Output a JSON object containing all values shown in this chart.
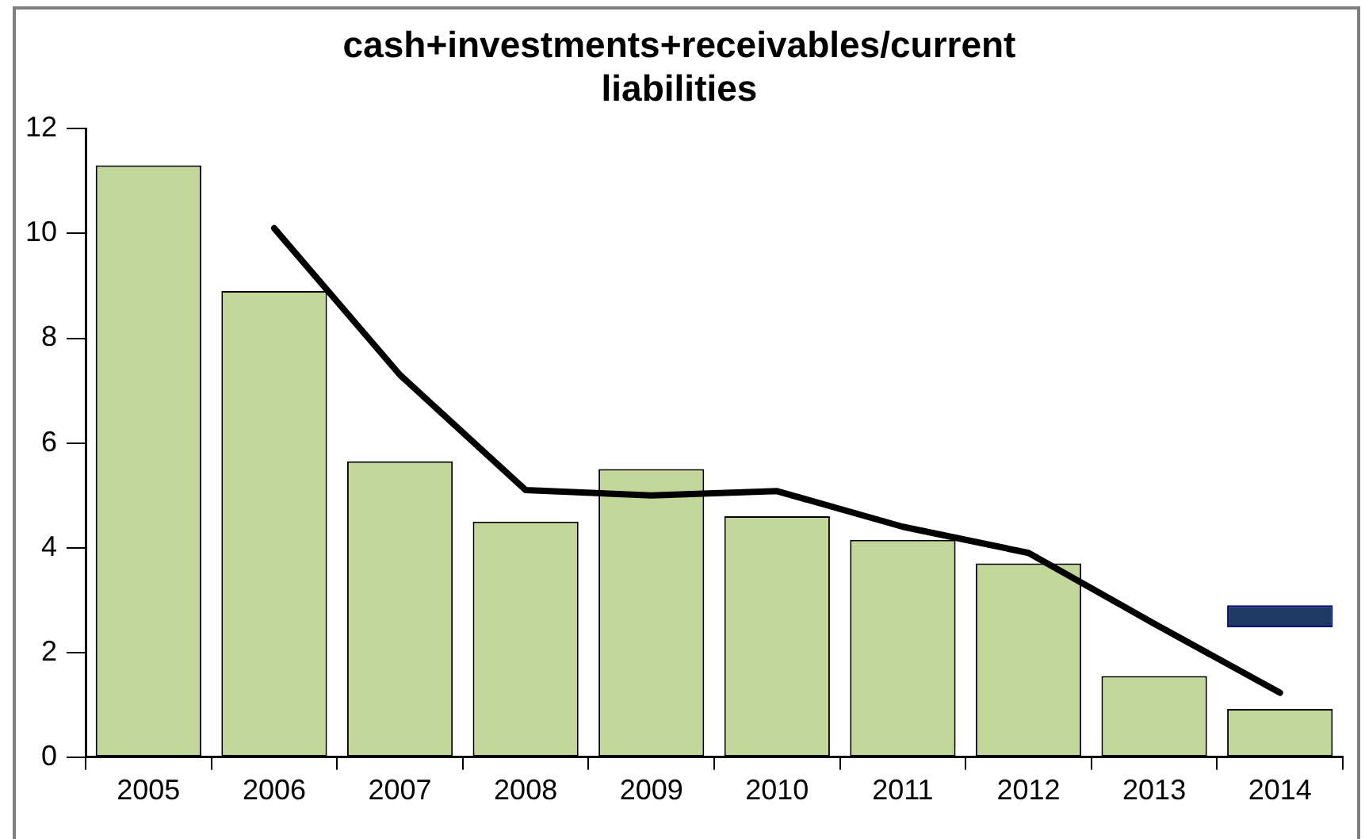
{
  "chart_data": {
    "type": "bar",
    "title": [
      "cash+investments+receivables/current",
      "liabilities"
    ],
    "categories": [
      "2005",
      "2006",
      "2007",
      "2008",
      "2009",
      "2010",
      "2011",
      "2012",
      "2013",
      "2014"
    ],
    "series": [
      {
        "color": "#c4d79b",
        "values": [
          11.3,
          8.9,
          5.65,
          4.5,
          5.5,
          4.6,
          4.15,
          3.7,
          1.55,
          0.92
        ]
      },
      {
        "type": "line",
        "color": "#000000",
        "values": [
          null,
          10.1,
          7.3,
          5.1,
          5.0,
          5.08,
          4.4,
          3.9,
          2.55,
          1.23
        ]
      },
      {
        "color": "#1f3864",
        "values": [
          null,
          null,
          null,
          null,
          null,
          null,
          null,
          null,
          null,
          0.42
        ],
        "base": [
          null,
          null,
          null,
          null,
          null,
          null,
          null,
          null,
          null,
          2.48
        ]
      }
    ],
    "ylim": [
      0,
      12
    ],
    "yticks": [
      0,
      2,
      4,
      6,
      8,
      10,
      12
    ],
    "grid": false,
    "legend": false,
    "marker": "none",
    "line_style": "solid"
  }
}
